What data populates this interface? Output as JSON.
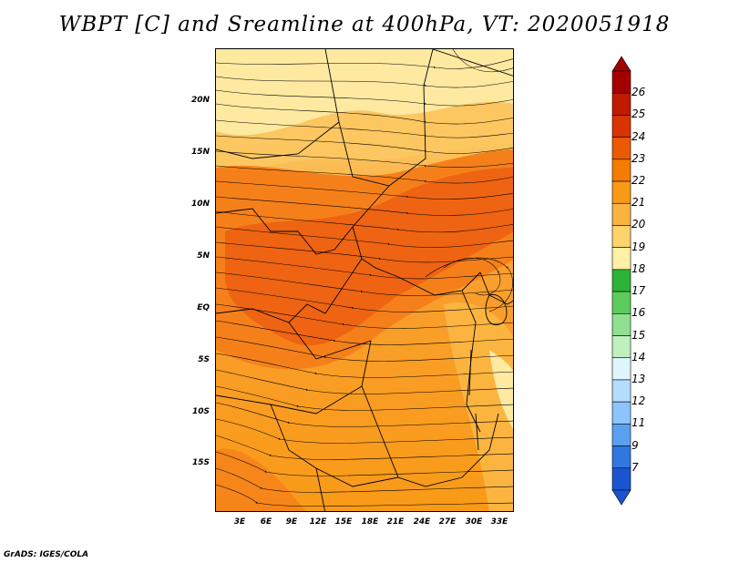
{
  "title": "WBPT [C] and Sreamline at 400hPa, VT: 2020051918",
  "footer": "GrADS: IGES/COLA",
  "map": {
    "variable": "WBPT [C]",
    "level": "400hPa",
    "valid_time": "2020051918",
    "lat_ticks": [
      "20N",
      "15N",
      "10N",
      "5N",
      "EQ",
      "5S",
      "10S",
      "15S"
    ],
    "lon_ticks": [
      "3E",
      "6E",
      "9E",
      "12E",
      "15E",
      "18E",
      "21E",
      "24E",
      "27E",
      "30E",
      "33E"
    ],
    "dominant_fill_range": [
      19,
      23
    ]
  },
  "colorbar": {
    "labels": [
      "26",
      "25",
      "24",
      "23",
      "22",
      "21",
      "20",
      "19",
      "18",
      "17",
      "16",
      "15",
      "14",
      "13",
      "12",
      "11",
      "9",
      "7"
    ],
    "colors": [
      "#a50000",
      "#c01a00",
      "#d93300",
      "#eb5a00",
      "#f57c00",
      "#f99a17",
      "#fbb440",
      "#fdd36b",
      "#fff0a5",
      "#2eb336",
      "#5ccc5c",
      "#8fe08f",
      "#bff0bf",
      "#e0f6ff",
      "#b4dcff",
      "#8cc4ff",
      "#5aa0f0",
      "#2f78e0",
      "#1a55d0"
    ]
  }
}
